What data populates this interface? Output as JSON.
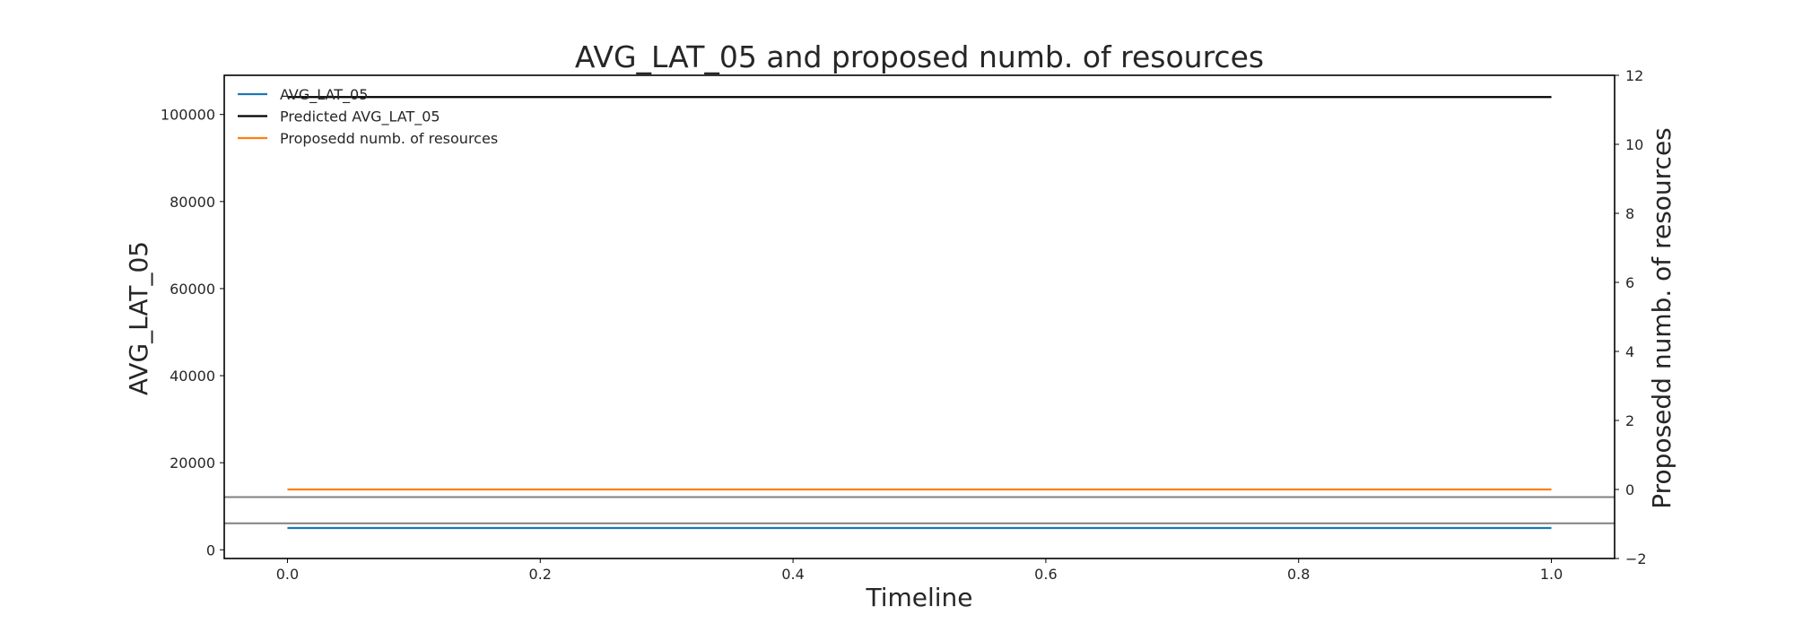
{
  "chart_data": {
    "type": "line",
    "title": "AVG_LAT_05 and proposed numb. of resources",
    "xlabel": "Timeline",
    "ylabel": "AVG_LAT_05",
    "y2label": "Proposedd numb. of resources",
    "xlim": [
      -0.05,
      1.05
    ],
    "ylim": [
      -2000,
      109000
    ],
    "y2lim": [
      -2,
      12
    ],
    "x_ticks": [
      0.0,
      0.2,
      0.4,
      0.6,
      0.8,
      1.0
    ],
    "x_tick_labels": [
      "0.0",
      "0.2",
      "0.4",
      "0.6",
      "0.8",
      "1.0"
    ],
    "y_ticks": [
      0,
      20000,
      40000,
      60000,
      80000,
      100000
    ],
    "y_tick_labels": [
      "0",
      "20000",
      "40000",
      "60000",
      "80000",
      "100000"
    ],
    "y2_ticks": [
      -2,
      0,
      2,
      4,
      6,
      8,
      10,
      12
    ],
    "y2_tick_labels": [
      "−2",
      "0",
      "2",
      "4",
      "6",
      "8",
      "10",
      "12"
    ],
    "grid": false,
    "legend_position": "top-left",
    "series": [
      {
        "name": "AVG_LAT_05",
        "axis": "left",
        "color": "#1f77b4",
        "x": [
          0.0,
          1.0
        ],
        "y": [
          5000,
          5000
        ]
      },
      {
        "name": "Predicted AVG_LAT_05",
        "axis": "left",
        "color": "#000000",
        "x": [
          0.0,
          1.0
        ],
        "y": [
          104000,
          104000
        ]
      },
      {
        "name": "Proposedd numb. of resources",
        "axis": "right",
        "color": "#ff7f0e",
        "x": [
          0.0,
          1.0
        ],
        "y": [
          0,
          0
        ]
      }
    ],
    "reference_lines": [
      {
        "axis": "right",
        "y": -0.22,
        "color": "#808080"
      },
      {
        "axis": "right",
        "y": -0.98,
        "color": "#808080"
      }
    ]
  }
}
